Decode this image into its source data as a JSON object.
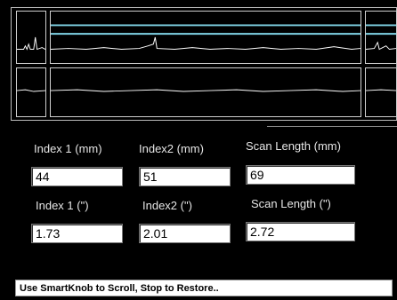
{
  "graph": {
    "upper_trace_color": "#7fd3e6",
    "signal_color": "#ffffff"
  },
  "fields": {
    "index1_mm": {
      "label": "Index 1 (mm)",
      "value": "44"
    },
    "index2_mm": {
      "label": "Index2 (mm)",
      "value": "51"
    },
    "scan_length_mm": {
      "label": "Scan Length (mm)",
      "value": "69"
    },
    "index1_in": {
      "label": "Index 1 (\")",
      "value": "1.73"
    },
    "index2_in": {
      "label": "Index2 (\")",
      "value": "2.01"
    },
    "scan_length_in": {
      "label": "Scan Length (\")",
      "value": "2.72"
    }
  },
  "status": {
    "message": "Use SmartKnob to Scroll, Stop to Restore.."
  }
}
